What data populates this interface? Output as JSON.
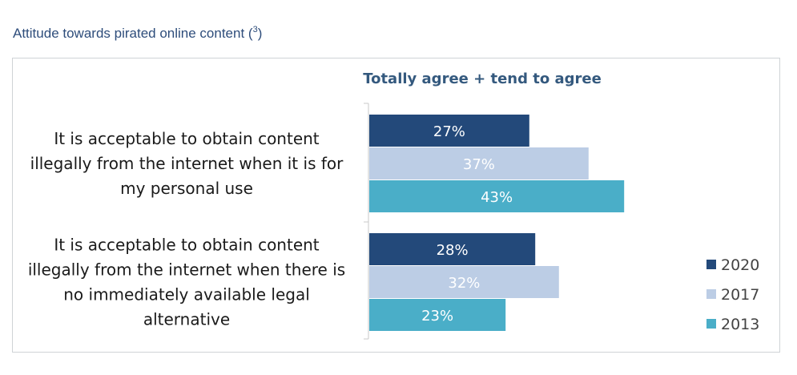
{
  "header": {
    "title": "Attitude towards pirated online content",
    "footnote_open": "(",
    "footnote_number": "3",
    "footnote_close": ")"
  },
  "chart_data": {
    "type": "bar",
    "orientation": "horizontal",
    "title": "Totally agree + tend to agree",
    "categories": [
      [
        "It is acceptable to obtain content",
        "illegally from the internet when it is for",
        "my personal use"
      ],
      [
        "It is acceptable to obtain content",
        "illegally from the internet when there is",
        "no immediately available legal",
        "alternative"
      ]
    ],
    "series": [
      {
        "name": "2020",
        "color": "#23497a",
        "values": [
          27,
          28
        ]
      },
      {
        "name": "2017",
        "color": "#bccde5",
        "values": [
          37,
          32
        ]
      },
      {
        "name": "2013",
        "color": "#4aaec8",
        "values": [
          43,
          23
        ]
      }
    ],
    "value_suffix": "%",
    "xlim": [
      0,
      100
    ],
    "grid": false,
    "legend_position": "bottom-right"
  }
}
